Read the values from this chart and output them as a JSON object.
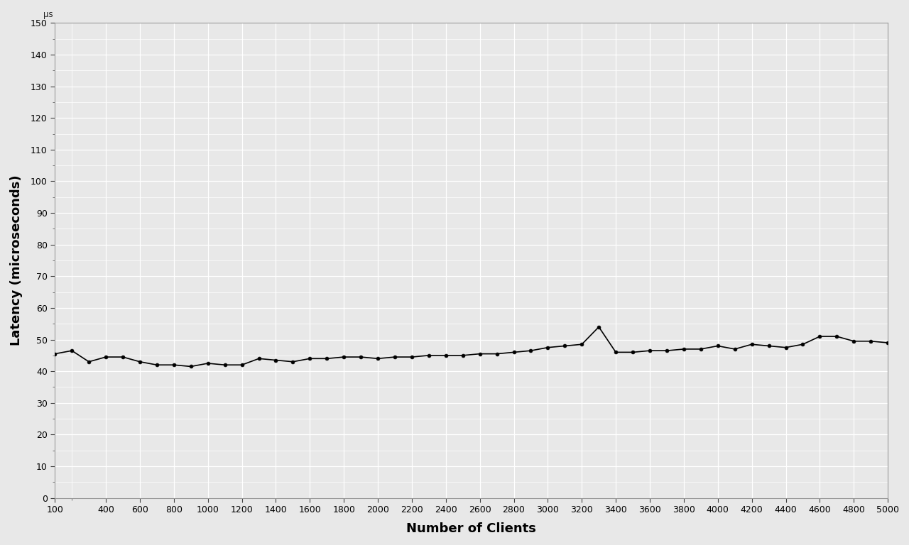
{
  "x": [
    100,
    200,
    300,
    400,
    500,
    600,
    700,
    800,
    900,
    1000,
    1100,
    1200,
    1300,
    1400,
    1500,
    1600,
    1700,
    1800,
    1900,
    2000,
    2100,
    2200,
    2300,
    2400,
    2500,
    2600,
    2700,
    2800,
    2900,
    3000,
    3100,
    3200,
    3300,
    3400,
    3500,
    3600,
    3700,
    3800,
    3900,
    4000,
    4100,
    4200,
    4300,
    4400,
    4500,
    4600,
    4700,
    4800,
    4900,
    5000
  ],
  "y": [
    45.5,
    46.5,
    43.0,
    44.5,
    44.5,
    43.0,
    42.0,
    42.0,
    41.5,
    42.5,
    42.0,
    42.0,
    44.0,
    43.5,
    43.0,
    44.0,
    44.0,
    44.5,
    44.5,
    44.0,
    44.5,
    44.5,
    45.0,
    45.0,
    45.0,
    45.5,
    45.5,
    46.0,
    46.5,
    47.5,
    48.0,
    48.5,
    54.0,
    46.0,
    46.0,
    46.5,
    46.5,
    47.0,
    47.0,
    48.0,
    47.0,
    48.5,
    48.0,
    47.5,
    48.5,
    51.0,
    51.0,
    49.5,
    49.5,
    49.0
  ],
  "line_color": "#000000",
  "marker_color": "#000000",
  "marker_size": 3.5,
  "line_width": 1.2,
  "background_color": "#e8e8e8",
  "plot_bg_color": "#e8e8e8",
  "grid_color": "#ffffff",
  "grid_linewidth_major": 0.9,
  "grid_linewidth_minor": 0.5,
  "xlabel": "Number of Clients",
  "ylabel": "Latency (microseconds)",
  "ylabel_unit": "μs",
  "xlim_left": 100,
  "xlim_right": 5000,
  "ylim_bottom": 0,
  "ylim_top": 150,
  "yticks": [
    0,
    10,
    20,
    30,
    40,
    50,
    60,
    70,
    80,
    90,
    100,
    110,
    120,
    130,
    140,
    150
  ],
  "xticks_major": [
    100,
    400,
    600,
    800,
    1000,
    1200,
    1400,
    1600,
    1800,
    2000,
    2200,
    2400,
    2600,
    2800,
    3000,
    3200,
    3400,
    3600,
    3800,
    4000,
    4200,
    4400,
    4600,
    4800,
    5000
  ],
  "tick_label_fontsize": 9,
  "axis_label_fontsize": 13,
  "axis_label_fontweight": "bold",
  "spine_color": "#999999",
  "tick_color": "#444444"
}
